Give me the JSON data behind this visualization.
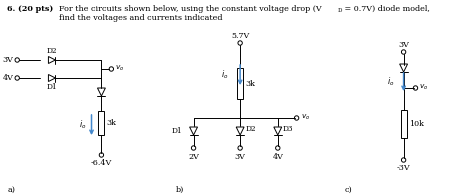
{
  "bg_color": "#ffffff",
  "text_color": "#000000",
  "blue_color": "#4488cc",
  "circuit_color": "#000000",
  "header1_bold": "6. (20 pts)",
  "header1_rest": "  For the circuits shown below, using the constant voltage drop (V",
  "header1_sub": "D",
  "header1_end": " = 0.7V) diode model,",
  "header2": "find the voltages and currents indicated"
}
